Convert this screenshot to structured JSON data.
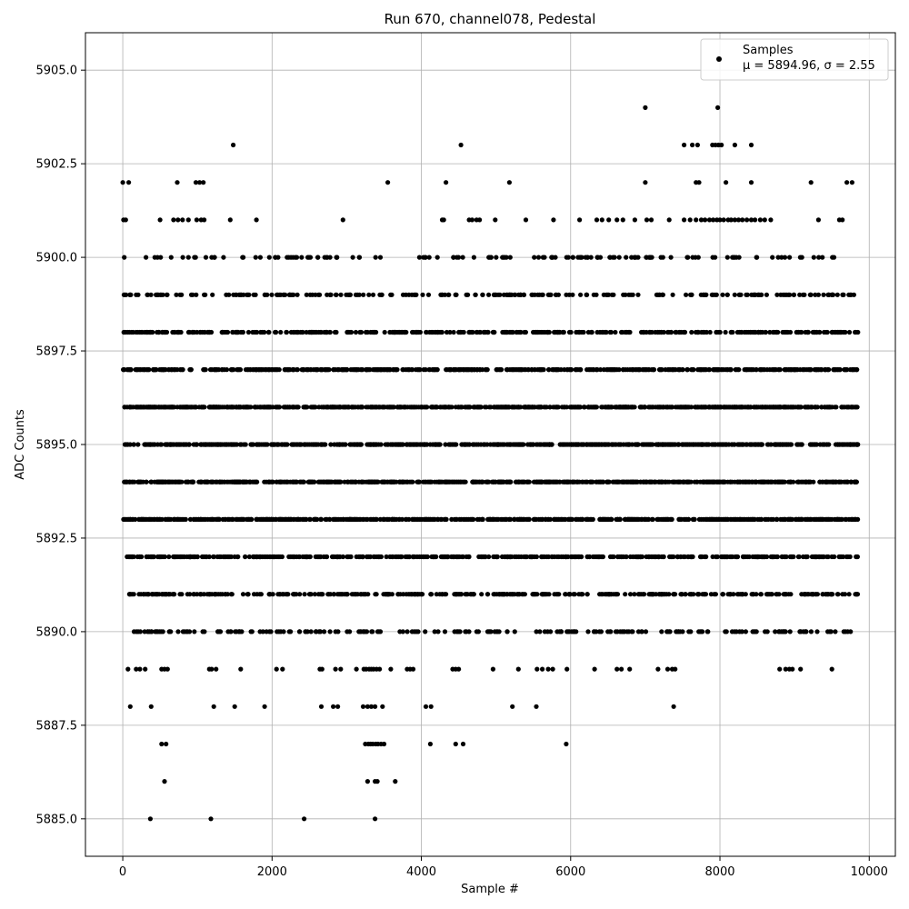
{
  "chart_data": {
    "type": "scatter",
    "title": "Run 670, channel078, Pedestal",
    "xlabel": "Sample #",
    "ylabel": "ADC Counts",
    "xlim": [
      -500,
      10350
    ],
    "ylim": [
      5884.0,
      5906.0
    ],
    "x_ticks": [
      "0",
      "2000",
      "4000",
      "6000",
      "8000",
      "10000"
    ],
    "y_ticks": [
      "5885.0",
      "5887.5",
      "5890.0",
      "5892.5",
      "5895.0",
      "5897.5",
      "5900.0",
      "5902.5",
      "5905.0"
    ],
    "grid": true,
    "legend": {
      "position": "top-right",
      "label": "Samples",
      "stats_label": "μ = 5894.96, σ = 2.55"
    },
    "marker_color": "#000000",
    "series": [
      {
        "name": "Samples",
        "rows": [
          {
            "y": 5904,
            "x": [
              7000,
              7970
            ]
          },
          {
            "y": 5903,
            "x": [
              1480,
              4530,
              7520,
              7630,
              7700,
              7900,
              7940,
              7980,
              8020,
              8200,
              8420
            ]
          },
          {
            "y": 5902,
            "x": [
              0,
              80,
              730,
              980,
              1030,
              1080,
              3550,
              4330,
              5180,
              7000,
              7680,
              7720,
              8080,
              8420,
              9220,
              9700,
              9770
            ]
          },
          {
            "y": 5901,
            "x": [
              10,
              40,
              500,
              680,
              740,
              800,
              880,
              990,
              1050,
              1090,
              1440,
              1790,
              2950,
              4280,
              4300,
              4640,
              4680,
              4740,
              4780,
              4990,
              5400,
              5770,
              6120,
              6350,
              6420,
              6510,
              6620,
              6700,
              6860,
              7020,
              7080,
              7320,
              7520,
              7600,
              7680,
              7750,
              7800,
              7860,
              7910,
              7960,
              8000,
              8050,
              8110,
              8150,
              8200,
              8250,
              8300,
              8360,
              8420,
              8470,
              8540,
              8600,
              8680,
              9320,
              9600,
              9640
            ]
          }
        ],
        "bands": [
          {
            "y": 5900,
            "n": 140,
            "x0": 20,
            "x1": 9850
          },
          {
            "y": 5899,
            "n": 250,
            "x0": 0,
            "x1": 9800
          },
          {
            "y": 5898,
            "n": 420,
            "x0": 0,
            "x1": 9850
          },
          {
            "y": 5897,
            "n": 600,
            "x0": 0,
            "x1": 9850
          },
          {
            "y": 5896,
            "n": 780,
            "x0": 0,
            "x1": 9850
          },
          {
            "y": 5895,
            "n": 760,
            "x0": 0,
            "x1": 9850
          },
          {
            "y": 5894,
            "n": 800,
            "x0": 0,
            "x1": 9850
          },
          {
            "y": 5893,
            "n": 620,
            "x0": 0,
            "x1": 9850
          },
          {
            "y": 5892,
            "n": 480,
            "x0": 50,
            "x1": 9850
          },
          {
            "y": 5891,
            "n": 380,
            "x0": 60,
            "x1": 9850
          },
          {
            "y": 5890,
            "n": 220,
            "x0": 100,
            "x1": 9820
          }
        ],
        "extra_rows": [
          {
            "y": 5889,
            "x": [
              70,
              180,
              230,
              300,
              520,
              560,
              600,
              1160,
              1190,
              1250,
              1580,
              2060,
              2140,
              2640,
              2670,
              2850,
              2920,
              3130,
              3230,
              3260,
              3300,
              3330,
              3360,
              3400,
              3440,
              3590,
              3810,
              3850,
              3890,
              4420,
              4460,
              4500,
              4960,
              5300,
              5550,
              5620,
              5700,
              5760,
              5950,
              6320,
              6620,
              6680,
              6790,
              7170,
              7300,
              7360,
              7400,
              8800,
              8880,
              8930,
              8970,
              9080,
              9500
            ]
          },
          {
            "y": 5888,
            "x": [
              100,
              380,
              1220,
              1500,
              1900,
              2660,
              2820,
              2880,
              3220,
              3280,
              3330,
              3380,
              3480,
              4060,
              4130,
              5220,
              5540,
              7380
            ]
          },
          {
            "y": 5887,
            "x": [
              520,
              580,
              3250,
              3290,
              3320,
              3350,
              3390,
              3420,
              3460,
              3500,
              4120,
              4460,
              4560,
              5940
            ]
          },
          {
            "y": 5886,
            "x": [
              560,
              3280,
              3380,
              3410,
              3650
            ]
          },
          {
            "y": 5885,
            "x": [
              370,
              1180,
              2430,
              3380
            ]
          }
        ]
      }
    ]
  }
}
